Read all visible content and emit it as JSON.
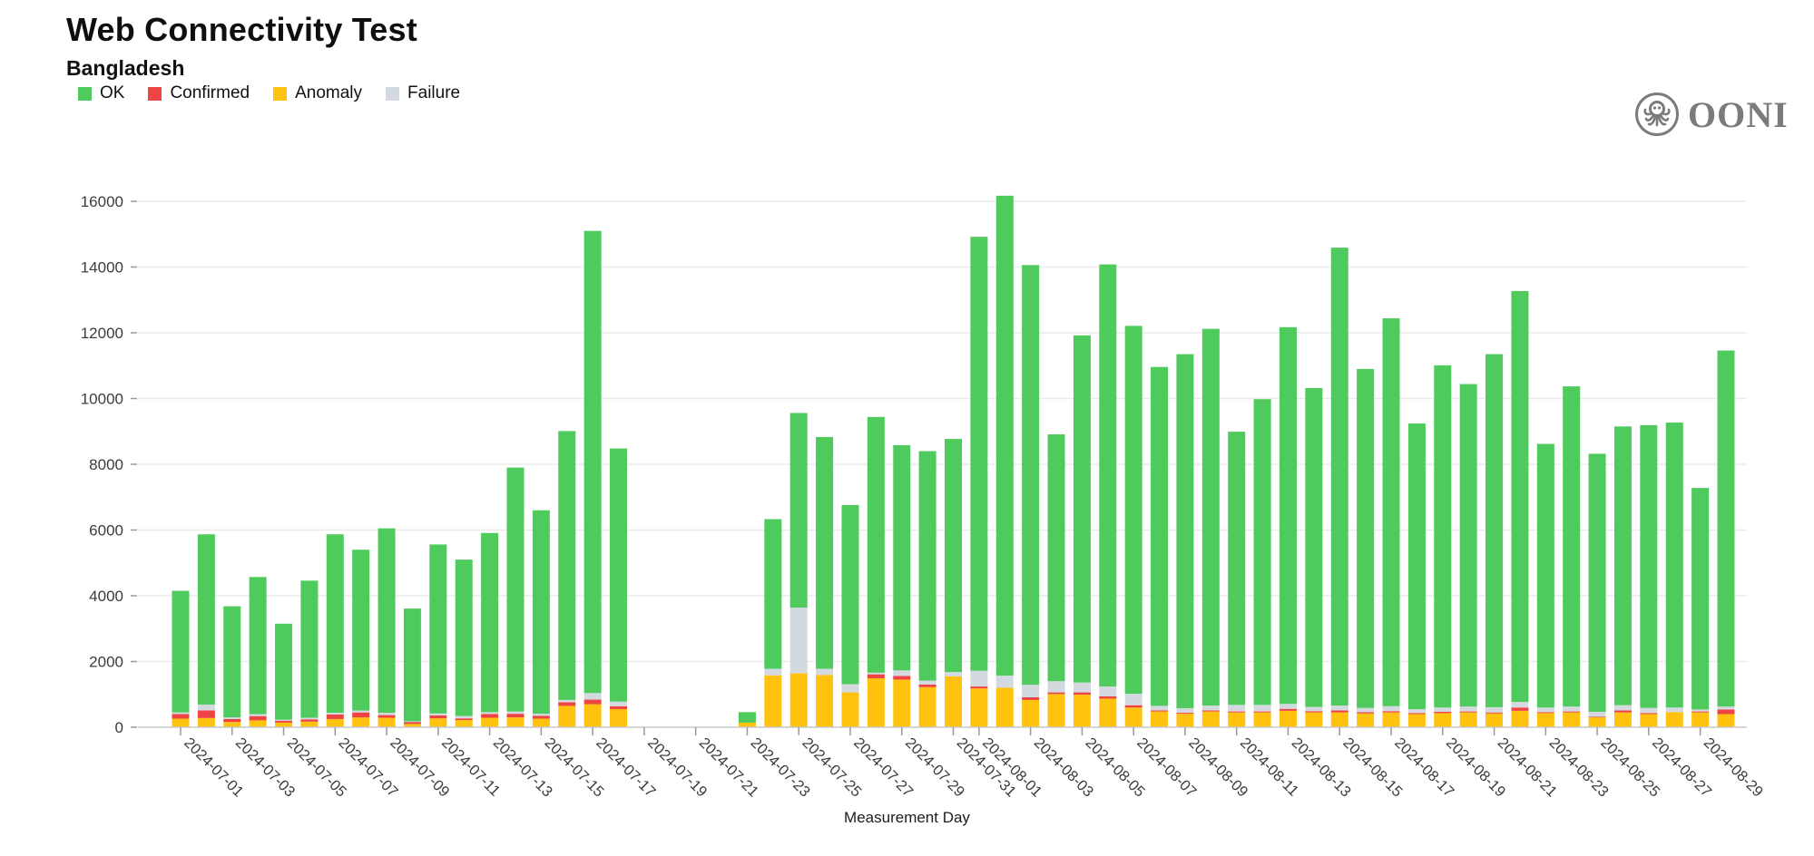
{
  "header": {
    "title": "Web Connectivity Test",
    "subtitle": "Bangladesh",
    "logo_text": "OONI"
  },
  "chart_data": {
    "type": "bar",
    "stacked": true,
    "title": "Web Connectivity Test",
    "subtitle": "Bangladesh",
    "xlabel": "Measurement Day",
    "ylabel": "",
    "ylim": [
      0,
      16000
    ],
    "ytick_step": 2000,
    "grid": true,
    "legend_position": "top-left",
    "stack_order": [
      "anomaly",
      "confirmed",
      "failure",
      "ok"
    ],
    "legend": [
      {
        "key": "ok",
        "label": "OK",
        "color": "#4ecb5c"
      },
      {
        "key": "confirmed",
        "label": "Confirmed",
        "color": "#ef4444"
      },
      {
        "key": "anomaly",
        "label": "Anomaly",
        "color": "#ffc20e"
      },
      {
        "key": "failure",
        "label": "Failure",
        "color": "#d3d9df"
      }
    ],
    "days": [
      {
        "date": "2024-07-01",
        "ok": 3700,
        "confirmed": 140,
        "anomaly": 260,
        "failure": 50
      },
      {
        "date": "2024-07-02",
        "ok": 5180,
        "confirmed": 230,
        "anomaly": 280,
        "failure": 180
      },
      {
        "date": "2024-07-03",
        "ok": 3380,
        "confirmed": 90,
        "anomaly": 160,
        "failure": 50
      },
      {
        "date": "2024-07-04",
        "ok": 4170,
        "confirmed": 130,
        "anomaly": 210,
        "failure": 60
      },
      {
        "date": "2024-07-05",
        "ok": 2920,
        "confirmed": 60,
        "anomaly": 140,
        "failure": 30
      },
      {
        "date": "2024-07-06",
        "ok": 4170,
        "confirmed": 70,
        "anomaly": 170,
        "failure": 50
      },
      {
        "date": "2024-07-07",
        "ok": 5430,
        "confirmed": 140,
        "anomaly": 250,
        "failure": 50
      },
      {
        "date": "2024-07-08",
        "ok": 4890,
        "confirmed": 150,
        "anomaly": 300,
        "failure": 60
      },
      {
        "date": "2024-07-09",
        "ok": 5610,
        "confirmed": 80,
        "anomaly": 290,
        "failure": 70
      },
      {
        "date": "2024-07-10",
        "ok": 3430,
        "confirmed": 60,
        "anomaly": 100,
        "failure": 20
      },
      {
        "date": "2024-07-11",
        "ok": 5140,
        "confirmed": 90,
        "anomaly": 270,
        "failure": 60
      },
      {
        "date": "2024-07-12",
        "ok": 4760,
        "confirmed": 50,
        "anomaly": 220,
        "failure": 70
      },
      {
        "date": "2024-07-13",
        "ok": 5450,
        "confirmed": 110,
        "anomaly": 290,
        "failure": 60
      },
      {
        "date": "2024-07-14",
        "ok": 7420,
        "confirmed": 110,
        "anomaly": 300,
        "failure": 70
      },
      {
        "date": "2024-07-15",
        "ok": 6190,
        "confirmed": 90,
        "anomaly": 260,
        "failure": 60
      },
      {
        "date": "2024-07-16",
        "ok": 8180,
        "confirmed": 110,
        "anomaly": 650,
        "failure": 70
      },
      {
        "date": "2024-07-17",
        "ok": 14060,
        "confirmed": 140,
        "anomaly": 700,
        "failure": 200
      },
      {
        "date": "2024-07-18",
        "ok": 7700,
        "confirmed": 90,
        "anomaly": 550,
        "failure": 140
      },
      {
        "date": "2024-07-19",
        "ok": 0,
        "confirmed": 0,
        "anomaly": 0,
        "failure": 0
      },
      {
        "date": "2024-07-20",
        "ok": 0,
        "confirmed": 0,
        "anomaly": 0,
        "failure": 0
      },
      {
        "date": "2024-07-21",
        "ok": 0,
        "confirmed": 0,
        "anomaly": 0,
        "failure": 0
      },
      {
        "date": "2024-07-22",
        "ok": 0,
        "confirmed": 0,
        "anomaly": 0,
        "failure": 0
      },
      {
        "date": "2024-07-23",
        "ok": 320,
        "confirmed": 0,
        "anomaly": 140,
        "failure": 0
      },
      {
        "date": "2024-07-24",
        "ok": 4550,
        "confirmed": 0,
        "anomaly": 1580,
        "failure": 200
      },
      {
        "date": "2024-07-25",
        "ok": 5920,
        "confirmed": 0,
        "anomaly": 1640,
        "failure": 2000
      },
      {
        "date": "2024-07-26",
        "ok": 7050,
        "confirmed": 0,
        "anomaly": 1590,
        "failure": 190
      },
      {
        "date": "2024-07-27",
        "ok": 5450,
        "confirmed": 0,
        "anomaly": 1060,
        "failure": 250
      },
      {
        "date": "2024-07-28",
        "ok": 7780,
        "confirmed": 120,
        "anomaly": 1490,
        "failure": 50
      },
      {
        "date": "2024-07-29",
        "ok": 6850,
        "confirmed": 110,
        "anomaly": 1450,
        "failure": 170
      },
      {
        "date": "2024-07-30",
        "ok": 6980,
        "confirmed": 80,
        "anomaly": 1220,
        "failure": 120
      },
      {
        "date": "2024-07-31",
        "ok": 7090,
        "confirmed": 0,
        "anomaly": 1550,
        "failure": 130
      },
      {
        "date": "2024-08-01",
        "ok": 13200,
        "confirmed": 60,
        "anomaly": 1180,
        "failure": 480
      },
      {
        "date": "2024-08-02",
        "ok": 14600,
        "confirmed": 0,
        "anomaly": 1200,
        "failure": 370
      },
      {
        "date": "2024-08-03",
        "ok": 12770,
        "confirmed": 80,
        "anomaly": 830,
        "failure": 380
      },
      {
        "date": "2024-08-04",
        "ok": 7510,
        "confirmed": 50,
        "anomaly": 1010,
        "failure": 340
      },
      {
        "date": "2024-08-05",
        "ok": 10560,
        "confirmed": 70,
        "anomaly": 990,
        "failure": 300
      },
      {
        "date": "2024-08-06",
        "ok": 12840,
        "confirmed": 70,
        "anomaly": 870,
        "failure": 300
      },
      {
        "date": "2024-08-07",
        "ok": 11190,
        "confirmed": 70,
        "anomaly": 600,
        "failure": 350
      },
      {
        "date": "2024-08-08",
        "ok": 10310,
        "confirmed": 30,
        "anomaly": 480,
        "failure": 140
      },
      {
        "date": "2024-08-09",
        "ok": 10770,
        "confirmed": 30,
        "anomaly": 410,
        "failure": 140
      },
      {
        "date": "2024-08-10",
        "ok": 11460,
        "confirmed": 30,
        "anomaly": 480,
        "failure": 150
      },
      {
        "date": "2024-08-11",
        "ok": 8310,
        "confirmed": 30,
        "anomaly": 450,
        "failure": 200
      },
      {
        "date": "2024-08-12",
        "ok": 9300,
        "confirmed": 30,
        "anomaly": 450,
        "failure": 200
      },
      {
        "date": "2024-08-13",
        "ok": 11460,
        "confirmed": 60,
        "anomaly": 500,
        "failure": 150
      },
      {
        "date": "2024-08-14",
        "ok": 9700,
        "confirmed": 40,
        "anomaly": 450,
        "failure": 130
      },
      {
        "date": "2024-08-15",
        "ok": 13930,
        "confirmed": 60,
        "anomaly": 450,
        "failure": 150
      },
      {
        "date": "2024-08-16",
        "ok": 10310,
        "confirmed": 40,
        "anomaly": 420,
        "failure": 130
      },
      {
        "date": "2024-08-17",
        "ok": 11800,
        "confirmed": 40,
        "anomaly": 450,
        "failure": 150
      },
      {
        "date": "2024-08-18",
        "ok": 8690,
        "confirmed": 30,
        "anomaly": 400,
        "failure": 120
      },
      {
        "date": "2024-08-19",
        "ok": 10410,
        "confirmed": 40,
        "anomaly": 430,
        "failure": 130
      },
      {
        "date": "2024-08-20",
        "ok": 9810,
        "confirmed": 30,
        "anomaly": 450,
        "failure": 150
      },
      {
        "date": "2024-08-21",
        "ok": 10740,
        "confirmed": 30,
        "anomaly": 420,
        "failure": 160
      },
      {
        "date": "2024-08-22",
        "ok": 12500,
        "confirmed": 100,
        "anomaly": 500,
        "failure": 170
      },
      {
        "date": "2024-08-23",
        "ok": 8020,
        "confirmed": 30,
        "anomaly": 430,
        "failure": 140
      },
      {
        "date": "2024-08-24",
        "ok": 9740,
        "confirmed": 30,
        "anomaly": 450,
        "failure": 150
      },
      {
        "date": "2024-08-25",
        "ok": 7850,
        "confirmed": 20,
        "anomaly": 300,
        "failure": 150
      },
      {
        "date": "2024-08-26",
        "ok": 8480,
        "confirmed": 60,
        "anomaly": 450,
        "failure": 160
      },
      {
        "date": "2024-08-27",
        "ok": 8600,
        "confirmed": 30,
        "anomaly": 400,
        "failure": 160
      },
      {
        "date": "2024-08-28",
        "ok": 8670,
        "confirmed": 0,
        "anomaly": 460,
        "failure": 140
      },
      {
        "date": "2024-08-29",
        "ok": 6740,
        "confirmed": 30,
        "anomaly": 450,
        "failure": 60
      },
      {
        "date": "2024-08-30",
        "ok": 10830,
        "confirmed": 140,
        "anomaly": 400,
        "failure": 90
      }
    ]
  }
}
